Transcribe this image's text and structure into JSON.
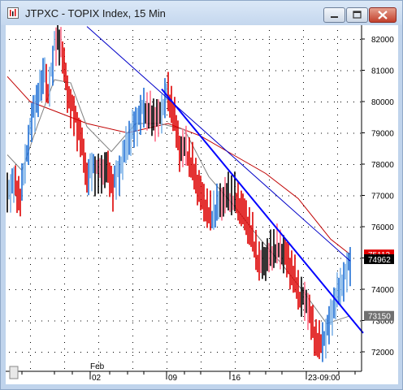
{
  "window": {
    "title": "JTPXC - TOPIX Index, 15 Min",
    "minimize_icon": "minimize-icon",
    "maximize_icon": "maximize-icon",
    "close_icon": "close-icon"
  },
  "chart_data": {
    "type": "candlestick",
    "title": "JTPXC - TOPIX Index, 15 Min",
    "y_axis": {
      "ticks": [
        "82000",
        "81000",
        "80000",
        "79000",
        "78000",
        "77000",
        "76000",
        "75000",
        "74000",
        "73000",
        "72000"
      ],
      "range": [
        71700,
        82400
      ]
    },
    "x_axis": {
      "month_label": "Feb",
      "ticks": [
        "02",
        "09",
        "16",
        "23-09:00"
      ]
    },
    "price_flags": [
      {
        "label": "75113",
        "value": 75113,
        "color": "#e00000"
      },
      {
        "label": "74962",
        "value": 74962,
        "color": "#000000"
      },
      {
        "label": "73150",
        "value": 73150,
        "color": "#707070"
      }
    ],
    "price_series": [
      {
        "x": 2,
        "y": 77100
      },
      {
        "x": 10,
        "y": 77400
      },
      {
        "x": 18,
        "y": 76900
      },
      {
        "x": 26,
        "y": 78400
      },
      {
        "x": 34,
        "y": 79700
      },
      {
        "x": 42,
        "y": 80300
      },
      {
        "x": 48,
        "y": 81100
      },
      {
        "x": 52,
        "y": 80100
      },
      {
        "x": 60,
        "y": 81800
      },
      {
        "x": 68,
        "y": 81900
      },
      {
        "x": 76,
        "y": 80300
      },
      {
        "x": 84,
        "y": 79600
      },
      {
        "x": 92,
        "y": 78900
      },
      {
        "x": 100,
        "y": 77600
      },
      {
        "x": 108,
        "y": 77900
      },
      {
        "x": 116,
        "y": 77700
      },
      {
        "x": 124,
        "y": 77900
      },
      {
        "x": 132,
        "y": 77300
      },
      {
        "x": 140,
        "y": 77800
      },
      {
        "x": 150,
        "y": 78700
      },
      {
        "x": 160,
        "y": 79300
      },
      {
        "x": 170,
        "y": 79800
      },
      {
        "x": 180,
        "y": 79500
      },
      {
        "x": 190,
        "y": 79500
      },
      {
        "x": 198,
        "y": 80300
      },
      {
        "x": 206,
        "y": 79700
      },
      {
        "x": 214,
        "y": 78500
      },
      {
        "x": 222,
        "y": 78500
      },
      {
        "x": 232,
        "y": 77700
      },
      {
        "x": 242,
        "y": 76900
      },
      {
        "x": 252,
        "y": 76300
      },
      {
        "x": 262,
        "y": 76700
      },
      {
        "x": 272,
        "y": 77000
      },
      {
        "x": 282,
        "y": 76900
      },
      {
        "x": 292,
        "y": 76500
      },
      {
        "x": 302,
        "y": 75800
      },
      {
        "x": 312,
        "y": 74800
      },
      {
        "x": 322,
        "y": 75000
      },
      {
        "x": 332,
        "y": 75300
      },
      {
        "x": 342,
        "y": 75200
      },
      {
        "x": 352,
        "y": 74600
      },
      {
        "x": 362,
        "y": 73800
      },
      {
        "x": 372,
        "y": 73500
      },
      {
        "x": 380,
        "y": 72500
      },
      {
        "x": 388,
        "y": 72200
      },
      {
        "x": 396,
        "y": 72700
      },
      {
        "x": 404,
        "y": 73500
      },
      {
        "x": 412,
        "y": 74100
      },
      {
        "x": 418,
        "y": 74400
      },
      {
        "x": 424,
        "y": 74962
      }
    ],
    "moving_average_long": [
      {
        "x": 2,
        "y": 80800
      },
      {
        "x": 30,
        "y": 80000
      },
      {
        "x": 60,
        "y": 79700
      },
      {
        "x": 100,
        "y": 79300
      },
      {
        "x": 150,
        "y": 79000
      },
      {
        "x": 200,
        "y": 79300
      },
      {
        "x": 240,
        "y": 78900
      },
      {
        "x": 280,
        "y": 78300
      },
      {
        "x": 320,
        "y": 77700
      },
      {
        "x": 360,
        "y": 76900
      },
      {
        "x": 400,
        "y": 75600
      },
      {
        "x": 424,
        "y": 75113
      }
    ],
    "moving_average_short": [
      {
        "x": 2,
        "y": 78300
      },
      {
        "x": 20,
        "y": 77800
      },
      {
        "x": 40,
        "y": 79300
      },
      {
        "x": 60,
        "y": 80700
      },
      {
        "x": 80,
        "y": 80600
      },
      {
        "x": 100,
        "y": 79200
      },
      {
        "x": 130,
        "y": 78400
      },
      {
        "x": 160,
        "y": 79300
      },
      {
        "x": 190,
        "y": 79300
      },
      {
        "x": 220,
        "y": 79100
      },
      {
        "x": 250,
        "y": 77600
      },
      {
        "x": 280,
        "y": 76700
      },
      {
        "x": 310,
        "y": 75700
      },
      {
        "x": 340,
        "y": 74800
      },
      {
        "x": 370,
        "y": 73800
      },
      {
        "x": 395,
        "y": 72900
      },
      {
        "x": 424,
        "y": 73150
      }
    ],
    "trendlines": [
      {
        "name": "",
        "from": {
          "x": 100,
          "y": 82400
        },
        "to": {
          "x": 424,
          "y": 74900
        },
        "color": "#0000c8",
        "width": 1
      },
      {
        "name": "",
        "from": {
          "x": 192,
          "y": 80400
        },
        "to": {
          "x": 440,
          "y": 72600
        },
        "color": "#0000ff",
        "width": 2
      }
    ]
  }
}
